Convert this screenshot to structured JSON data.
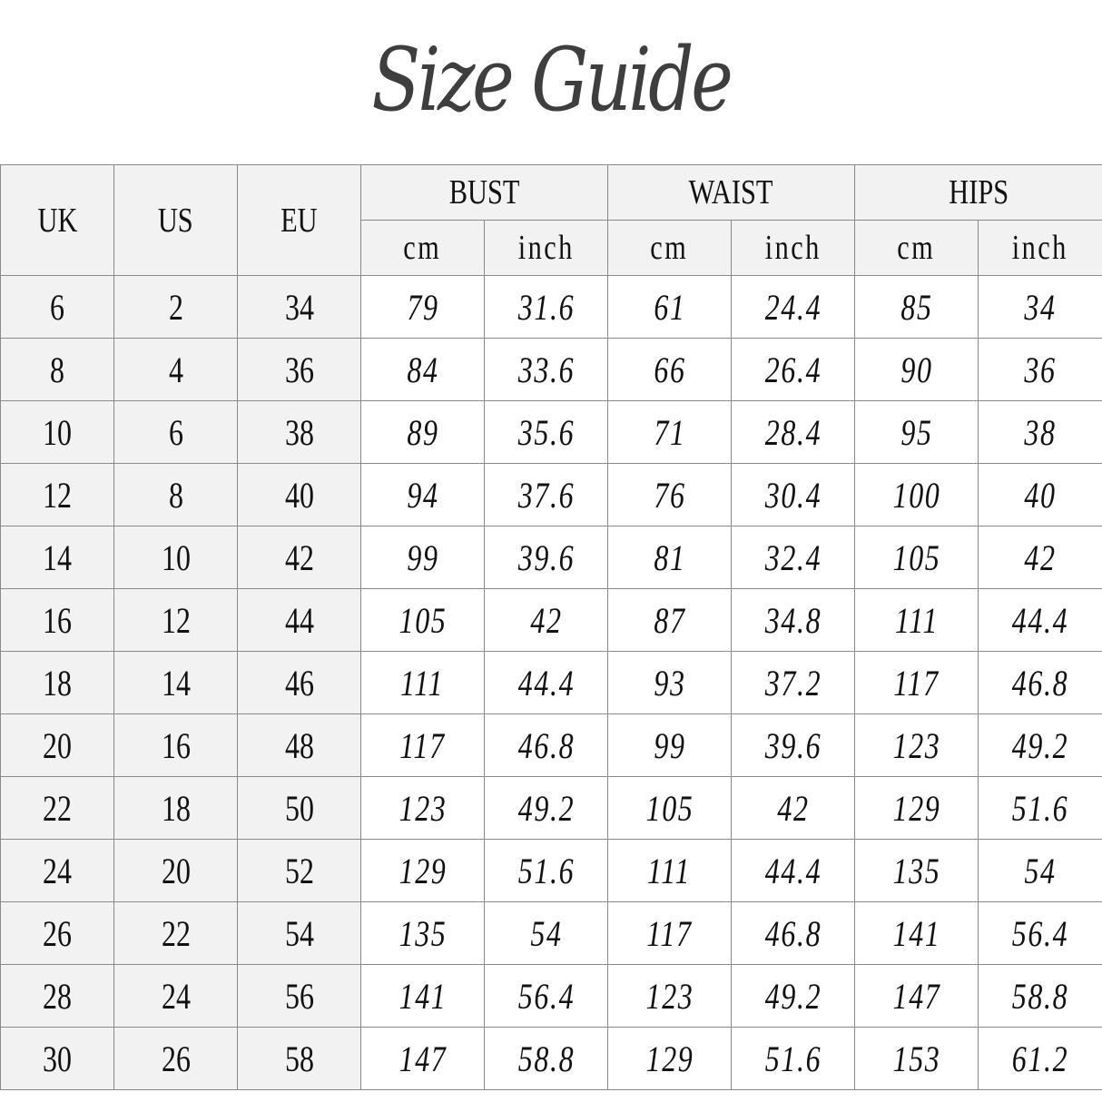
{
  "title": "Size Guide",
  "header": {
    "size_columns": [
      "UK",
      "US",
      "EU"
    ],
    "groups": [
      "BUST",
      "WAIST",
      "HIPS"
    ],
    "units": [
      "cm",
      "inch"
    ]
  },
  "rows": [
    [
      "6",
      "2",
      "34",
      "79",
      "31.6",
      "61",
      "24.4",
      "85",
      "34"
    ],
    [
      "8",
      "4",
      "36",
      "84",
      "33.6",
      "66",
      "26.4",
      "90",
      "36"
    ],
    [
      "10",
      "6",
      "38",
      "89",
      "35.6",
      "71",
      "28.4",
      "95",
      "38"
    ],
    [
      "12",
      "8",
      "40",
      "94",
      "37.6",
      "76",
      "30.4",
      "100",
      "40"
    ],
    [
      "14",
      "10",
      "42",
      "99",
      "39.6",
      "81",
      "32.4",
      "105",
      "42"
    ],
    [
      "16",
      "12",
      "44",
      "105",
      "42",
      "87",
      "34.8",
      "111",
      "44.4"
    ],
    [
      "18",
      "14",
      "46",
      "111",
      "44.4",
      "93",
      "37.2",
      "117",
      "46.8"
    ],
    [
      "20",
      "16",
      "48",
      "117",
      "46.8",
      "99",
      "39.6",
      "123",
      "49.2"
    ],
    [
      "22",
      "18",
      "50",
      "123",
      "49.2",
      "105",
      "42",
      "129",
      "51.6"
    ],
    [
      "24",
      "20",
      "52",
      "129",
      "51.6",
      "111",
      "44.4",
      "135",
      "54"
    ],
    [
      "26",
      "22",
      "54",
      "135",
      "54",
      "117",
      "46.8",
      "141",
      "56.4"
    ],
    [
      "28",
      "24",
      "56",
      "141",
      "56.4",
      "123",
      "49.2",
      "147",
      "58.8"
    ],
    [
      "30",
      "26",
      "58",
      "147",
      "58.8",
      "129",
      "51.6",
      "153",
      "61.2"
    ]
  ],
  "colors": {
    "header_bg": "#f2f2f2",
    "border": "#8a8a8a",
    "title": "#3e3e3e"
  }
}
